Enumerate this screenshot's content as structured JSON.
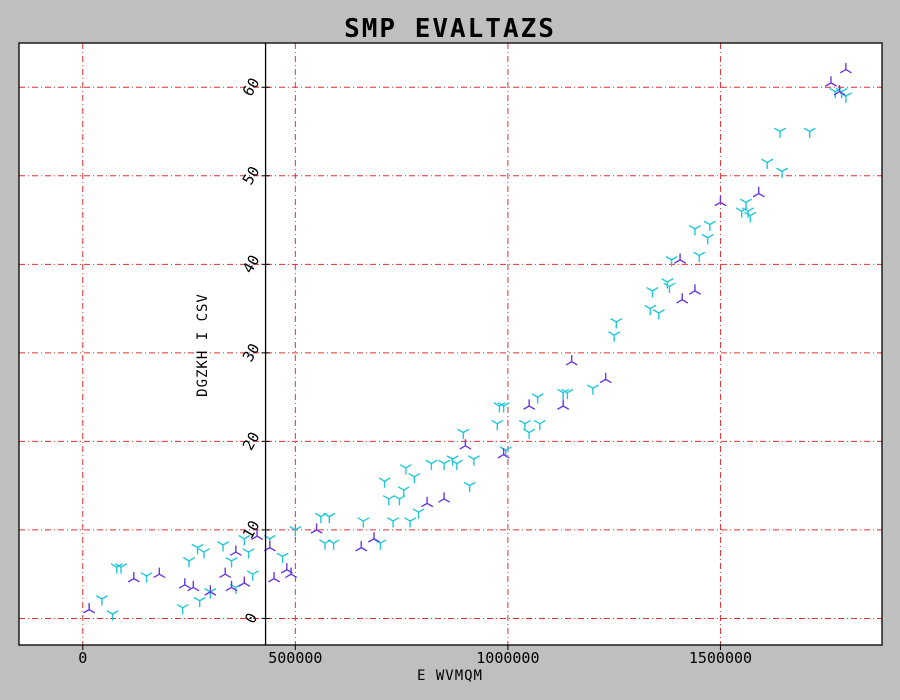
{
  "chart_data": {
    "type": "scatter",
    "title": "SMP EVALTAZS",
    "xlabel": "E WVMQM",
    "ylabel": "DGZKH I CSV",
    "xlim": [
      -150000,
      1880000
    ],
    "ylim": [
      -3,
      65
    ],
    "x_ticks": [
      0,
      500000,
      1000000,
      1500000
    ],
    "x_tick_labels": [
      "0",
      "500000",
      "1000000",
      "1500000"
    ],
    "y_ticks": [
      0,
      10,
      20,
      30,
      40,
      50,
      60
    ],
    "y_tick_labels": [
      "0",
      "10",
      "20",
      "30",
      "40",
      "50",
      "60"
    ],
    "grid": true,
    "legend": "none",
    "colors": {
      "figure_background": "#bfbfbf",
      "plot_background": "#ffffff",
      "grid": "#e03030",
      "series_1": "#20c8d8",
      "series_2": "#6a3ae0"
    },
    "series": [
      {
        "marker": "tri_down",
        "color": "#20c8d8",
        "points": [
          [
            45000,
            2.2
          ],
          [
            70000,
            0.5
          ],
          [
            80000,
            5.8
          ],
          [
            90000,
            5.8
          ],
          [
            150000,
            4.8
          ],
          [
            235000,
            1.2
          ],
          [
            250000,
            6.5
          ],
          [
            270000,
            8.0
          ],
          [
            275000,
            2.0
          ],
          [
            285000,
            7.5
          ],
          [
            300000,
            3.0
          ],
          [
            330000,
            8.3
          ],
          [
            350000,
            6.5
          ],
          [
            360000,
            3.5
          ],
          [
            380000,
            9.0
          ],
          [
            390000,
            7.5
          ],
          [
            400000,
            5.0
          ],
          [
            440000,
            9.0
          ],
          [
            470000,
            7.0
          ],
          [
            500000,
            10.0
          ],
          [
            560000,
            11.5
          ],
          [
            570000,
            8.5
          ],
          [
            580000,
            11.5
          ],
          [
            590000,
            8.5
          ],
          [
            660000,
            11.0
          ],
          [
            700000,
            8.5
          ],
          [
            710000,
            15.5
          ],
          [
            720000,
            13.5
          ],
          [
            730000,
            11.0
          ],
          [
            745000,
            13.5
          ],
          [
            755000,
            14.5
          ],
          [
            760000,
            17.0
          ],
          [
            770000,
            11.0
          ],
          [
            780000,
            16.0
          ],
          [
            790000,
            12.0
          ],
          [
            820000,
            17.5
          ],
          [
            850000,
            17.5
          ],
          [
            870000,
            18.0
          ],
          [
            880000,
            17.5
          ],
          [
            895000,
            21.0
          ],
          [
            910000,
            15.0
          ],
          [
            920000,
            18.0
          ],
          [
            975000,
            22.0
          ],
          [
            980000,
            24.0
          ],
          [
            990000,
            24.0
          ],
          [
            995000,
            19.0
          ],
          [
            1040000,
            22.0
          ],
          [
            1050000,
            21.0
          ],
          [
            1070000,
            25.0
          ],
          [
            1075000,
            22.0
          ],
          [
            1130000,
            25.5
          ],
          [
            1140000,
            25.5
          ],
          [
            1200000,
            26.0
          ],
          [
            1250000,
            32.0
          ],
          [
            1255000,
            33.5
          ],
          [
            1335000,
            35.0
          ],
          [
            1340000,
            37.0
          ],
          [
            1355000,
            34.5
          ],
          [
            1375000,
            38.0
          ],
          [
            1380000,
            37.5
          ],
          [
            1385000,
            40.5
          ],
          [
            1440000,
            44.0
          ],
          [
            1450000,
            41.0
          ],
          [
            1470000,
            43.0
          ],
          [
            1475000,
            44.5
          ],
          [
            1550000,
            46.0
          ],
          [
            1560000,
            47.0
          ],
          [
            1565000,
            46.0
          ],
          [
            1570000,
            45.5
          ],
          [
            1610000,
            51.5
          ],
          [
            1640000,
            55.0
          ],
          [
            1645000,
            50.5
          ],
          [
            1710000,
            55.0
          ],
          [
            1770000,
            59.5
          ],
          [
            1785000,
            59.5
          ],
          [
            1795000,
            59.0
          ]
        ]
      },
      {
        "marker": "tri_up",
        "color": "#6a3ae0",
        "points": [
          [
            15000,
            1.0
          ],
          [
            120000,
            4.5
          ],
          [
            180000,
            5.0
          ],
          [
            240000,
            3.8
          ],
          [
            260000,
            3.5
          ],
          [
            300000,
            3.0
          ],
          [
            335000,
            5.0
          ],
          [
            350000,
            3.5
          ],
          [
            360000,
            7.5
          ],
          [
            380000,
            4.0
          ],
          [
            410000,
            9.3
          ],
          [
            440000,
            8.0
          ],
          [
            450000,
            4.5
          ],
          [
            480000,
            5.5
          ],
          [
            490000,
            5.0
          ],
          [
            550000,
            10.0
          ],
          [
            655000,
            8.0
          ],
          [
            685000,
            9.0
          ],
          [
            810000,
            13.0
          ],
          [
            850000,
            13.5
          ],
          [
            900000,
            19.5
          ],
          [
            990000,
            18.5
          ],
          [
            1050000,
            24.0
          ],
          [
            1130000,
            24.0
          ],
          [
            1150000,
            29.0
          ],
          [
            1230000,
            27.0
          ],
          [
            1405000,
            40.5
          ],
          [
            1410000,
            36.0
          ],
          [
            1440000,
            37.0
          ],
          [
            1500000,
            47.0
          ],
          [
            1590000,
            48.0
          ],
          [
            1760000,
            60.5
          ],
          [
            1780000,
            59.5
          ],
          [
            1795000,
            62.0
          ]
        ]
      }
    ]
  }
}
